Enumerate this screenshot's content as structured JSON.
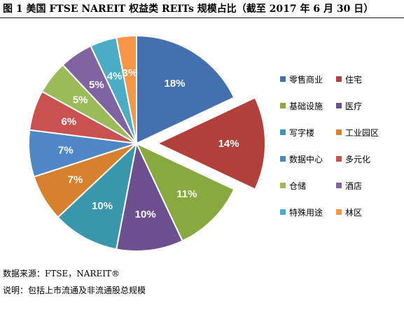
{
  "title": "图 1 美国 FTSE NAREIT 权益类 REITs 规模占比（截至 2017 年 6 月 30 日）",
  "source": "数据来源：FTSE，NAREIT®",
  "note": "说明：包括上市流通及非流通股总规模",
  "chart_data": {
    "type": "pie",
    "title": "",
    "exploded": [
      "住宅"
    ],
    "legend_position": "right",
    "slices": [
      {
        "name": "零售商业",
        "value": 18,
        "label": "18%",
        "color": "#4470b0"
      },
      {
        "name": "住宅",
        "value": 14,
        "label": "14%",
        "color": "#b1403c"
      },
      {
        "name": "基础设施",
        "value": 11,
        "label": "11%",
        "color": "#88a840"
      },
      {
        "name": "医疗",
        "value": 10,
        "label": "10%",
        "color": "#6b4f8f"
      },
      {
        "name": "写字楼",
        "value": 10,
        "label": "10%",
        "color": "#3a96ab"
      },
      {
        "name": "工业园区",
        "value": 7,
        "label": "7%",
        "color": "#d7812f"
      },
      {
        "name": "数据中心",
        "value": 7,
        "label": "7%",
        "color": "#4f86c6"
      },
      {
        "name": "多元化",
        "value": 6,
        "label": "6%",
        "color": "#c9514f"
      },
      {
        "name": "仓储",
        "value": 5,
        "label": "5%",
        "color": "#9bbb59"
      },
      {
        "name": "酒店",
        "value": 5,
        "label": "5%",
        "color": "#8064a2"
      },
      {
        "name": "特殊用途",
        "value": 4,
        "label": "4%",
        "color": "#4bacc6"
      },
      {
        "name": "林区",
        "value": 3,
        "label": "3%",
        "color": "#f79646"
      }
    ]
  }
}
